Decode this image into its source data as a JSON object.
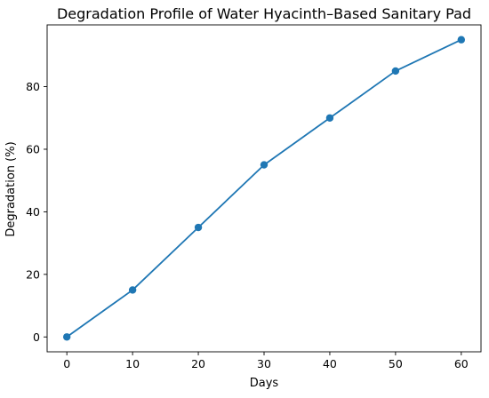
{
  "chart_data": {
    "type": "line",
    "title": "Degradation Profile of Water Hyacinth–Based Sanitary Pad",
    "xlabel": "Days",
    "ylabel": "Degradation (%)",
    "x": [
      0,
      10,
      20,
      30,
      40,
      50,
      60
    ],
    "series": [
      {
        "values": [
          0,
          15,
          35,
          55,
          70,
          85,
          95
        ],
        "color": "#1f77b4",
        "marker": "circle"
      }
    ],
    "xticks": [
      0,
      10,
      20,
      30,
      40,
      50,
      60
    ],
    "yticks": [
      0,
      20,
      40,
      60,
      80
    ],
    "xlim": [
      -3,
      63
    ],
    "ylim": [
      -4.75,
      99.75
    ],
    "grid": false,
    "legend": "none"
  }
}
